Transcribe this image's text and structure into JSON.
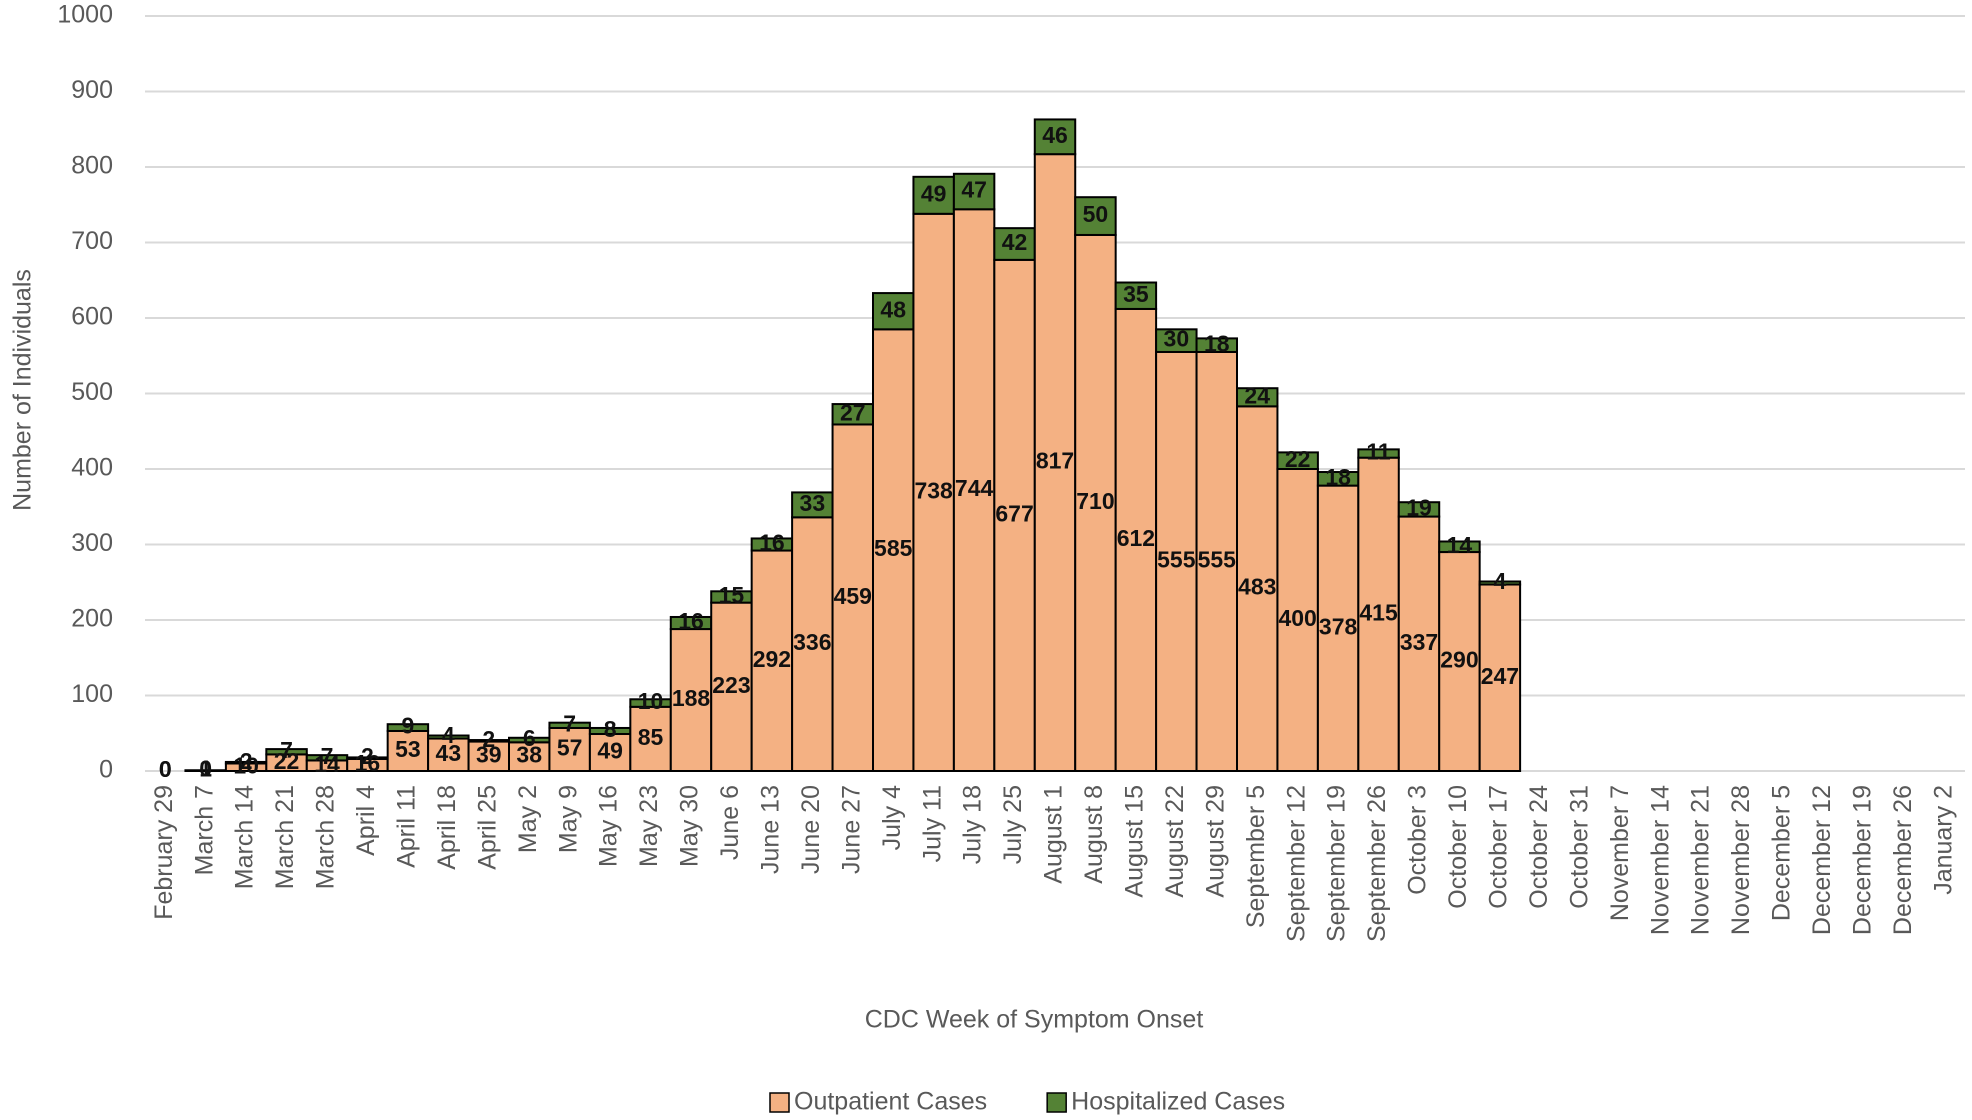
{
  "chart_data": {
    "type": "stacked_bar",
    "xlabel": "CDC Week of Symptom Onset",
    "ylabel": "Number of Individuals",
    "categories": [
      "February 29",
      "March 7",
      "March 14",
      "March 21",
      "March 28",
      "April 4",
      "April 11",
      "April 18",
      "April 25",
      "May 2",
      "May 9",
      "May 16",
      "May 23",
      "May 30",
      "June 6",
      "June 13",
      "June 20",
      "June 27",
      "July 4",
      "July 11",
      "July 18",
      "July 25",
      "August 1",
      "August 8",
      "August 15",
      "August 22",
      "August 29",
      "September 5",
      "September 12",
      "September 19",
      "September 26",
      "October 3",
      "October 10",
      "October 17",
      "October 24",
      "October 31",
      "November 7",
      "November 14",
      "November 21",
      "November 28",
      "December 5",
      "December 12",
      "December 19",
      "December 26",
      "January 2"
    ],
    "series": [
      {
        "name": "Outpatient Cases",
        "color": "#f4b183",
        "values": [
          0,
          1,
          10,
          22,
          14,
          16,
          53,
          43,
          39,
          38,
          57,
          49,
          85,
          188,
          223,
          292,
          336,
          459,
          585,
          738,
          744,
          677,
          817,
          710,
          612,
          555,
          555,
          483,
          400,
          378,
          415,
          337,
          290,
          247,
          null,
          null,
          null,
          null,
          null,
          null,
          null,
          null,
          null,
          null,
          null
        ]
      },
      {
        "name": "Hospitalized Cases",
        "color": "#548235",
        "values": [
          0,
          0,
          2,
          7,
          7,
          2,
          9,
          4,
          2,
          6,
          7,
          8,
          10,
          16,
          15,
          16,
          33,
          27,
          48,
          49,
          47,
          42,
          46,
          50,
          35,
          30,
          18,
          24,
          22,
          18,
          11,
          19,
          14,
          4,
          null,
          null,
          null,
          null,
          null,
          null,
          null,
          null,
          null,
          null,
          null
        ]
      }
    ],
    "ylim": [
      0,
      1000
    ],
    "yticks": [
      0,
      100,
      200,
      300,
      400,
      500,
      600,
      700,
      800,
      900,
      1000
    ],
    "grid": true,
    "legend": "bottom"
  }
}
